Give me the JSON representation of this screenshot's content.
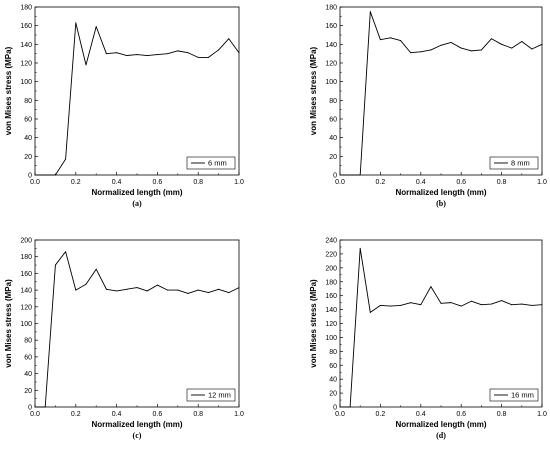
{
  "chart_data": [
    {
      "type": "line",
      "caption": "(a)",
      "xlabel": "Normalized length (mm)",
      "ylabel": "von Mises stress (MPa)",
      "xlim": [
        0.0,
        1.0
      ],
      "ylim": [
        0,
        180
      ],
      "xticks": [
        0.0,
        0.2,
        0.4,
        0.6,
        0.8,
        1.0
      ],
      "xtick_labels": [
        "0.0",
        "0.2",
        "0.4",
        "0.6",
        "0.8",
        "1.0"
      ],
      "yticks": [
        0,
        20,
        40,
        60,
        80,
        100,
        120,
        140,
        160,
        180
      ],
      "ytick_labels": [
        "0",
        "20",
        "40",
        "60",
        "80",
        "100",
        "120",
        "140",
        "160",
        "180"
      ],
      "legend_position": "bottom-right",
      "series": [
        {
          "name": "6 mm",
          "x": [
            0.0,
            0.05,
            0.1,
            0.15,
            0.2,
            0.25,
            0.3,
            0.35,
            0.4,
            0.45,
            0.5,
            0.55,
            0.6,
            0.65,
            0.7,
            0.75,
            0.8,
            0.85,
            0.9,
            0.95,
            1.0
          ],
          "y": [
            0,
            0,
            0,
            17,
            163,
            118,
            159,
            130,
            131,
            128,
            129,
            128,
            129,
            130,
            133,
            131,
            126,
            126,
            134,
            146,
            131
          ]
        }
      ]
    },
    {
      "type": "line",
      "caption": "(b)",
      "xlabel": "Normalized length (mm)",
      "ylabel": "von Mises stress (MPa)",
      "xlim": [
        0.0,
        1.0
      ],
      "ylim": [
        0,
        180
      ],
      "xticks": [
        0.0,
        0.2,
        0.4,
        0.6,
        0.8,
        1.0
      ],
      "xtick_labels": [
        "0.0",
        "0.2",
        "0.4",
        "0.6",
        "0.8",
        "1.0"
      ],
      "yticks": [
        0,
        20,
        40,
        60,
        80,
        100,
        120,
        140,
        160,
        180
      ],
      "ytick_labels": [
        "0",
        "20",
        "40",
        "60",
        "80",
        "100",
        "120",
        "140",
        "160",
        "180"
      ],
      "legend_position": "bottom-right",
      "series": [
        {
          "name": "8 mm",
          "x": [
            0.0,
            0.05,
            0.1,
            0.15,
            0.2,
            0.25,
            0.3,
            0.35,
            0.4,
            0.45,
            0.5,
            0.55,
            0.6,
            0.65,
            0.7,
            0.75,
            0.8,
            0.85,
            0.9,
            0.95,
            1.0
          ],
          "y": [
            0,
            0,
            0,
            175,
            145,
            147,
            144,
            131,
            132,
            134,
            139,
            142,
            136,
            133,
            134,
            146,
            140,
            136,
            143,
            135,
            140
          ]
        }
      ]
    },
    {
      "type": "line",
      "caption": "(c)",
      "xlabel": "Normalized length (mm)",
      "ylabel": "von Mises stress (MPa)",
      "xlim": [
        0.0,
        1.0
      ],
      "ylim": [
        0,
        200
      ],
      "xticks": [
        0.0,
        0.2,
        0.4,
        0.6,
        0.8,
        1.0
      ],
      "xtick_labels": [
        "0.0",
        "0.2",
        "0.4",
        "0.6",
        "0.8",
        "1.0"
      ],
      "yticks": [
        0,
        20,
        40,
        60,
        80,
        100,
        120,
        140,
        160,
        180,
        200
      ],
      "ytick_labels": [
        "0",
        "20",
        "40",
        "60",
        "80",
        "100",
        "120",
        "140",
        "160",
        "180",
        "200"
      ],
      "legend_position": "bottom-right",
      "series": [
        {
          "name": "12 mm",
          "x": [
            0.0,
            0.05,
            0.1,
            0.15,
            0.2,
            0.25,
            0.3,
            0.35,
            0.4,
            0.45,
            0.5,
            0.55,
            0.6,
            0.65,
            0.7,
            0.75,
            0.8,
            0.85,
            0.9,
            0.95,
            1.0
          ],
          "y": [
            0,
            0,
            170,
            186,
            140,
            147,
            165,
            141,
            139,
            141,
            143,
            139,
            146,
            140,
            140,
            136,
            140,
            137,
            141,
            137,
            143
          ]
        }
      ]
    },
    {
      "type": "line",
      "caption": "(d)",
      "xlabel": "Normalized length (mm)",
      "ylabel": "von Mises stress (MPa)",
      "xlim": [
        0.0,
        1.0
      ],
      "ylim": [
        0,
        240
      ],
      "xticks": [
        0.0,
        0.2,
        0.4,
        0.6,
        0.8,
        1.0
      ],
      "xtick_labels": [
        "0.0",
        "0.2",
        "0.4",
        "0.6",
        "0.8",
        "1.0"
      ],
      "yticks": [
        0,
        20,
        40,
        60,
        80,
        100,
        120,
        140,
        160,
        180,
        200,
        220,
        240
      ],
      "ytick_labels": [
        "0",
        "20",
        "40",
        "60",
        "80",
        "100",
        "120",
        "140",
        "160",
        "180",
        "200",
        "220",
        "240"
      ],
      "legend_position": "bottom-right",
      "series": [
        {
          "name": "16 mm",
          "x": [
            0.0,
            0.05,
            0.1,
            0.15,
            0.2,
            0.25,
            0.3,
            0.35,
            0.4,
            0.45,
            0.5,
            0.55,
            0.6,
            0.65,
            0.7,
            0.75,
            0.8,
            0.85,
            0.9,
            0.95,
            1.0
          ],
          "y": [
            0,
            0,
            228,
            136,
            146,
            145,
            146,
            150,
            147,
            173,
            149,
            150,
            145,
            152,
            147,
            148,
            153,
            147,
            148,
            146,
            147
          ]
        }
      ]
    }
  ]
}
